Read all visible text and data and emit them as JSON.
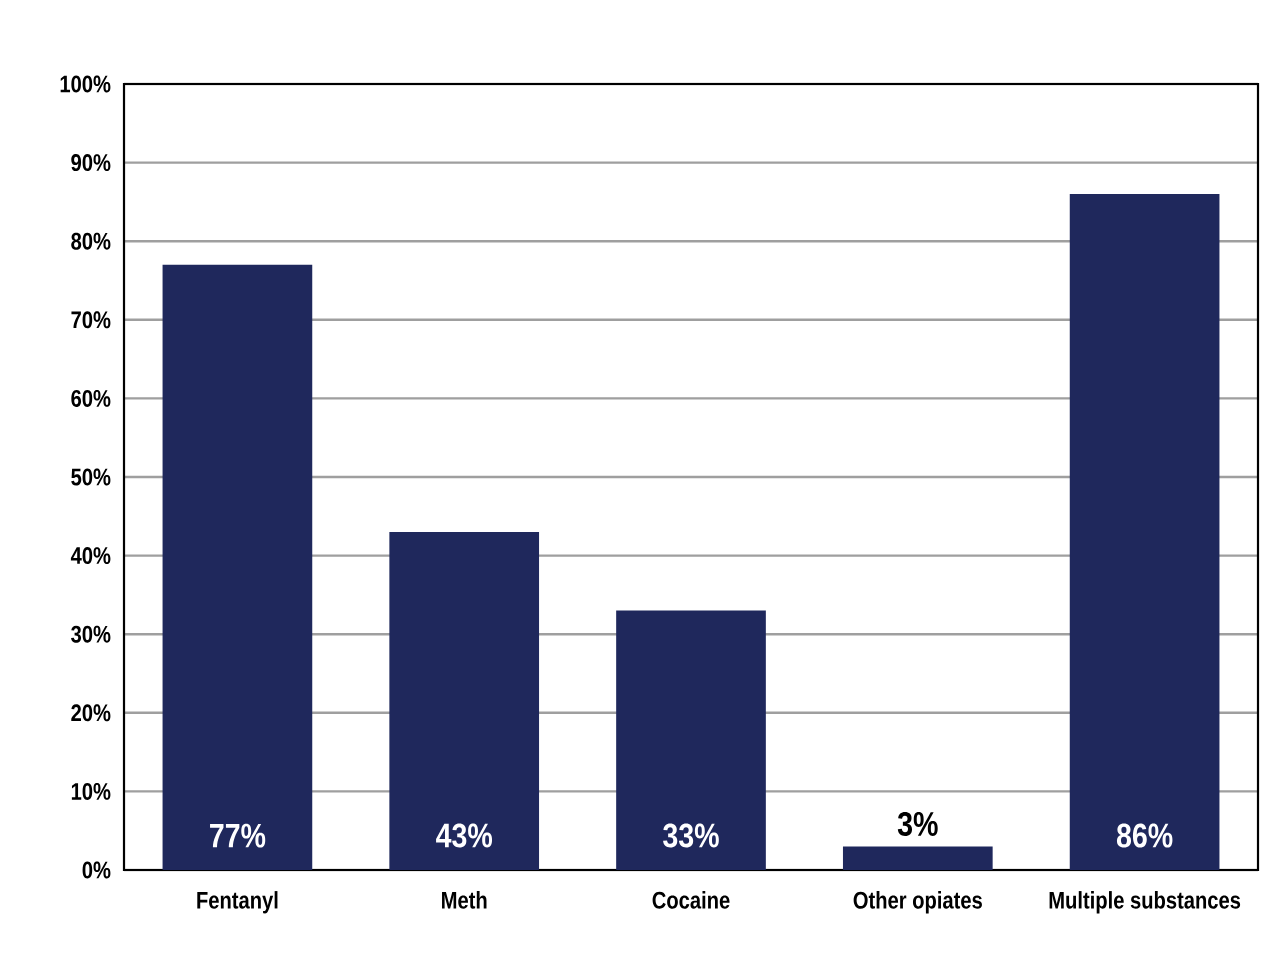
{
  "chart_data": {
    "type": "bar",
    "categories": [
      "Fentanyl",
      "Meth",
      "Cocaine",
      "Other opiates",
      "Multiple substances"
    ],
    "values": [
      77,
      43,
      33,
      3,
      86
    ],
    "value_labels": [
      "77%",
      "43%",
      "33%",
      "3%",
      "86%"
    ],
    "color": "#1f285c",
    "ylim": [
      0,
      100
    ],
    "yticks": [
      {
        "value": 0,
        "label": "0%"
      },
      {
        "value": 10,
        "label": "10%"
      },
      {
        "value": 20,
        "label": "20%"
      },
      {
        "value": 30,
        "label": "30%"
      },
      {
        "value": 40,
        "label": "40%"
      },
      {
        "value": 50,
        "label": "50%"
      },
      {
        "value": 60,
        "label": "60%"
      },
      {
        "value": 70,
        "label": "70%"
      },
      {
        "value": 80,
        "label": "80%"
      },
      {
        "value": 90,
        "label": "90%"
      },
      {
        "value": 100,
        "label": "100%"
      }
    ],
    "grid": "y"
  }
}
